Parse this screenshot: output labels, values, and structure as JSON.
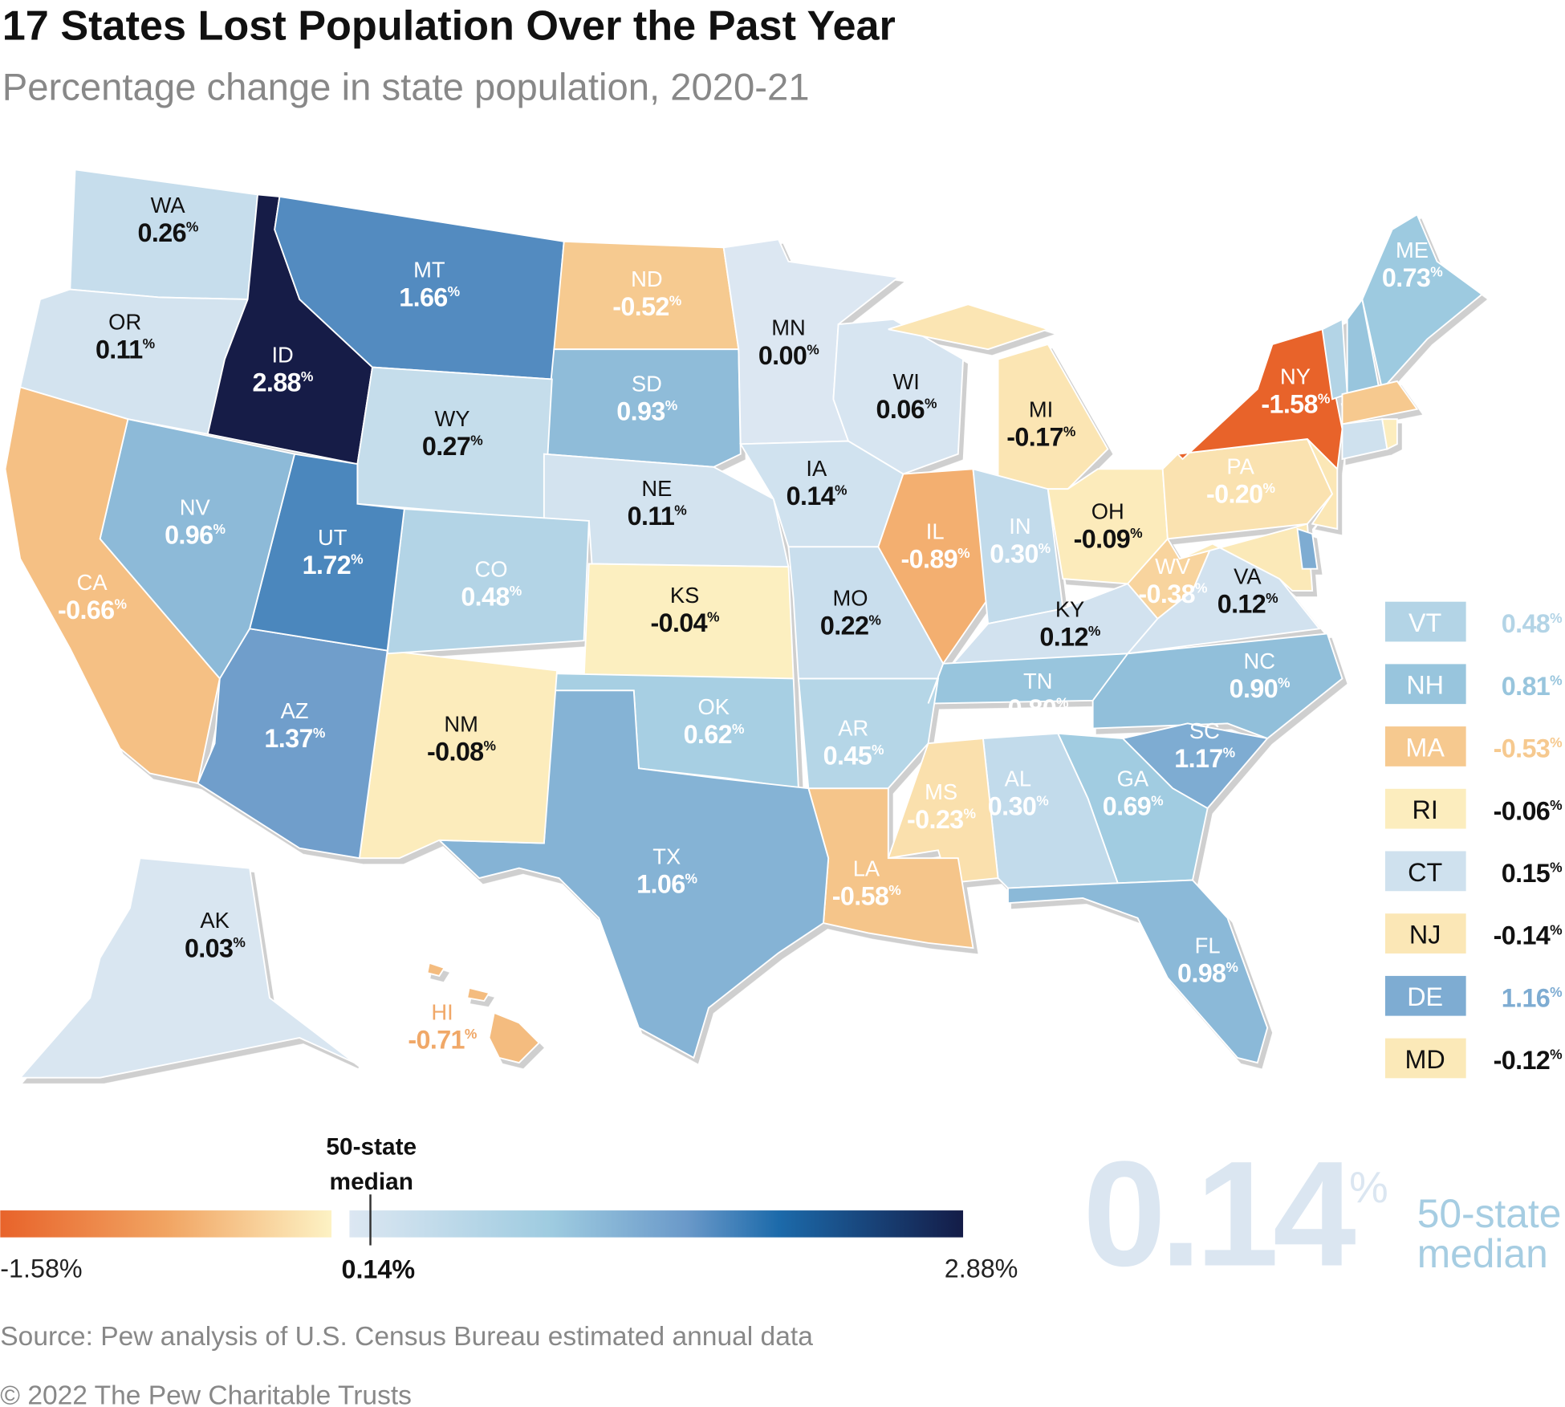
{
  "header": {
    "title": "17 States Lost Population Over the Past Year",
    "subtitle": "Percentage change in state population, 2020-21"
  },
  "color_scale": {
    "negative": [
      "#e8632a",
      "#f1a462",
      "#f6c98f",
      "#fdf2c4"
    ],
    "positive": [
      "#dce7f2",
      "#9ecbe0",
      "#6a99c9",
      "#1c6aaa",
      "#141c47"
    ],
    "min": -1.58,
    "median": 0.14,
    "max": 2.88
  },
  "states": [
    {
      "abbr": "WA",
      "value": "0.26"
    },
    {
      "abbr": "OR",
      "value": "0.11"
    },
    {
      "abbr": "ID",
      "value": "2.88"
    },
    {
      "abbr": "MT",
      "value": "1.66"
    },
    {
      "abbr": "ND",
      "value": "-0.52"
    },
    {
      "abbr": "MN",
      "value": "0.00"
    },
    {
      "abbr": "WI",
      "value": "0.06"
    },
    {
      "abbr": "MI",
      "value": "-0.17"
    },
    {
      "abbr": "SD",
      "value": "0.93"
    },
    {
      "abbr": "WY",
      "value": "0.27"
    },
    {
      "abbr": "NE",
      "value": "0.11"
    },
    {
      "abbr": "IA",
      "value": "0.14"
    },
    {
      "abbr": "IL",
      "value": "-0.89"
    },
    {
      "abbr": "IN",
      "value": "0.30"
    },
    {
      "abbr": "OH",
      "value": "-0.09"
    },
    {
      "abbr": "PA",
      "value": "-0.20"
    },
    {
      "abbr": "NY",
      "value": "-1.58"
    },
    {
      "abbr": "ME",
      "value": "0.73"
    },
    {
      "abbr": "NV",
      "value": "0.96"
    },
    {
      "abbr": "UT",
      "value": "1.72"
    },
    {
      "abbr": "CO",
      "value": "0.48"
    },
    {
      "abbr": "CA",
      "value": "-0.66"
    },
    {
      "abbr": "KS",
      "value": "-0.04"
    },
    {
      "abbr": "MO",
      "value": "0.22"
    },
    {
      "abbr": "KY",
      "value": "0.12"
    },
    {
      "abbr": "WV",
      "value": "-0.38"
    },
    {
      "abbr": "VA",
      "value": "0.12"
    },
    {
      "abbr": "TN",
      "value": "0.80"
    },
    {
      "abbr": "NC",
      "value": "0.90"
    },
    {
      "abbr": "AZ",
      "value": "1.37"
    },
    {
      "abbr": "NM",
      "value": "-0.08"
    },
    {
      "abbr": "OK",
      "value": "0.62"
    },
    {
      "abbr": "AR",
      "value": "0.45"
    },
    {
      "abbr": "MS",
      "value": "-0.23"
    },
    {
      "abbr": "AL",
      "value": "0.30"
    },
    {
      "abbr": "GA",
      "value": "0.69"
    },
    {
      "abbr": "SC",
      "value": "1.17"
    },
    {
      "abbr": "TX",
      "value": "1.06"
    },
    {
      "abbr": "LA",
      "value": "-0.58"
    },
    {
      "abbr": "FL",
      "value": "0.98"
    },
    {
      "abbr": "AK",
      "value": "0.03"
    },
    {
      "abbr": "HI",
      "value": "-0.71"
    }
  ],
  "small_states": [
    {
      "abbr": "VT",
      "value": "0.48"
    },
    {
      "abbr": "NH",
      "value": "0.81"
    },
    {
      "abbr": "MA",
      "value": "-0.53"
    },
    {
      "abbr": "RI",
      "value": "-0.06"
    },
    {
      "abbr": "CT",
      "value": "0.15"
    },
    {
      "abbr": "NJ",
      "value": "-0.14"
    },
    {
      "abbr": "DE",
      "value": "1.16"
    },
    {
      "abbr": "MD",
      "value": "-0.12"
    }
  ],
  "percent_sign": "%",
  "legend": {
    "median_label_line1": "50-state",
    "median_label_line2": "median",
    "min_label": "-1.58%",
    "median_value_label": "0.14%",
    "max_label": "2.88%"
  },
  "callout": {
    "value": "0.14",
    "unit": "%",
    "label_line1": "50-state",
    "label_line2": "median"
  },
  "footer": {
    "source": "Source: Pew analysis of U.S. Census Bureau estimated annual data",
    "copyright": "© 2022 The Pew Charitable Trusts"
  }
}
